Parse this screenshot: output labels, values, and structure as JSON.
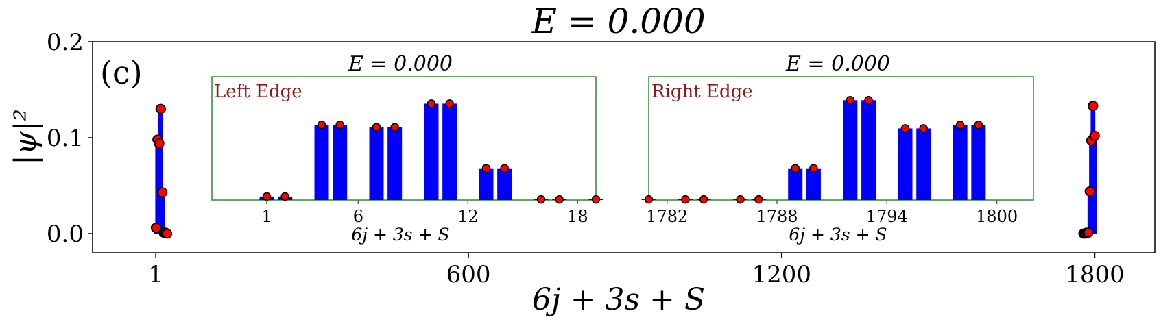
{
  "figure": {
    "title": "E = 0.000",
    "panel_label": "(c)"
  },
  "chart_data": [
    {
      "id": "main",
      "type": "bar",
      "title": "E = 0.000",
      "xlabel": "6j + 3s + S",
      "ylabel": "|ψ|²",
      "xlim": [
        -120,
        1915
      ],
      "ylim": [
        -0.02,
        0.2
      ],
      "xticks": [
        1,
        600,
        1200,
        1800
      ],
      "yticks": [
        0.0,
        0.1,
        0.2
      ],
      "ytick_labels": [
        "0.0",
        "0.1",
        "0.2"
      ],
      "bar_color": "#0000ff",
      "marker_color": "#ff0000",
      "x": [
        1,
        2,
        4,
        5,
        7,
        8,
        10,
        11,
        13,
        14,
        16,
        17,
        19,
        20,
        22,
        23,
        1778,
        1779,
        1781,
        1782,
        1784,
        1785,
        1787,
        1788,
        1790,
        1791,
        1793,
        1794,
        1796,
        1797,
        1799,
        1800
      ],
      "values": [
        0.006,
        0.006,
        0.098,
        0.098,
        0.094,
        0.094,
        0.13,
        0.13,
        0.043,
        0.043,
        0.001,
        0.001,
        0.001,
        0.001,
        0.0,
        0.0,
        0.0,
        0.0,
        0.0,
        0.0,
        0.001,
        0.001,
        0.001,
        0.001,
        0.044,
        0.044,
        0.097,
        0.097,
        0.133,
        0.133,
        0.102,
        0.102
      ]
    },
    {
      "id": "left-inset",
      "type": "bar",
      "title": "E = 0.000",
      "annotation": "Left Edge",
      "xlabel": "6j + 3s + S",
      "xticks": [
        1,
        6,
        12,
        18
      ],
      "xlim": [
        -2,
        19
      ],
      "ylim": [
        0,
        0.105
      ],
      "x": [
        1,
        2,
        4,
        5,
        7,
        8,
        10,
        11,
        13,
        14,
        16,
        17,
        19
      ],
      "values": [
        0.003,
        0.003,
        0.064,
        0.064,
        0.062,
        0.062,
        0.082,
        0.082,
        0.027,
        0.027,
        0.0005,
        0.0005,
        0.0005
      ]
    },
    {
      "id": "right-inset",
      "type": "bar",
      "title": "E = 0.000",
      "annotation": "Right Edge",
      "xlabel": "6j + 3s + S",
      "xticks": [
        1782,
        1788,
        1794,
        1800
      ],
      "xlim": [
        1781,
        1802
      ],
      "ylim": [
        0,
        0.105
      ],
      "x": [
        1781,
        1783,
        1784,
        1786,
        1787,
        1789,
        1790,
        1792,
        1793,
        1795,
        1796,
        1798,
        1799
      ],
      "values": [
        0.0005,
        0.0005,
        0.0005,
        0.0005,
        0.0005,
        0.027,
        0.027,
        0.085,
        0.085,
        0.061,
        0.061,
        0.064,
        0.064
      ]
    }
  ]
}
